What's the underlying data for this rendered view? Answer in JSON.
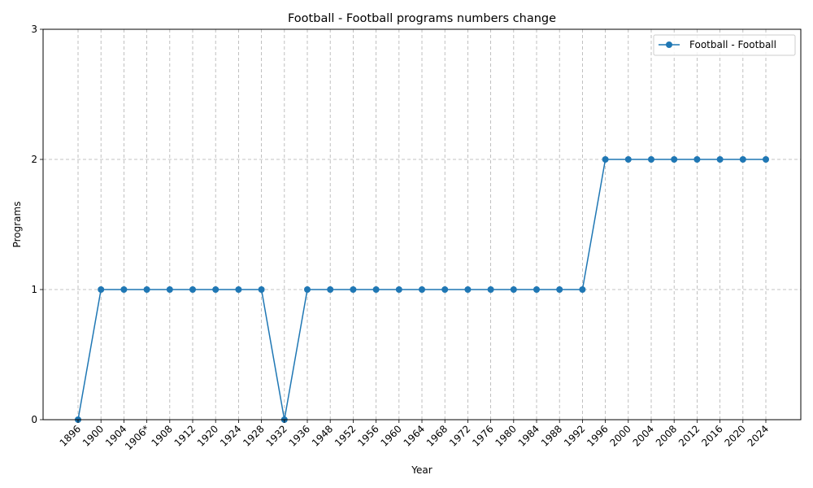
{
  "chart_data": {
    "type": "line",
    "title": "Football - Football programs numbers change",
    "xlabel": "Year",
    "ylabel": "Programs",
    "categories": [
      "1896",
      "1900",
      "1904",
      "1906*",
      "1908",
      "1912",
      "1920",
      "1924",
      "1928",
      "1932",
      "1936",
      "1948",
      "1952",
      "1956",
      "1960",
      "1964",
      "1968",
      "1972",
      "1976",
      "1980",
      "1984",
      "1988",
      "1992",
      "1996",
      "2000",
      "2004",
      "2008",
      "2012",
      "2016",
      "2020",
      "2024"
    ],
    "series": [
      {
        "name": "Football - Football",
        "values": [
          0,
          1,
          1,
          1,
          1,
          1,
          1,
          1,
          1,
          0,
          1,
          1,
          1,
          1,
          1,
          1,
          1,
          1,
          1,
          1,
          1,
          1,
          1,
          2,
          2,
          2,
          2,
          2,
          2,
          2,
          2
        ],
        "color": "#1f77b4"
      }
    ],
    "yticks": [
      "0",
      "1",
      "2",
      "3"
    ],
    "ylim": [
      0,
      3
    ],
    "grid": true,
    "legend_position": "top-right"
  }
}
